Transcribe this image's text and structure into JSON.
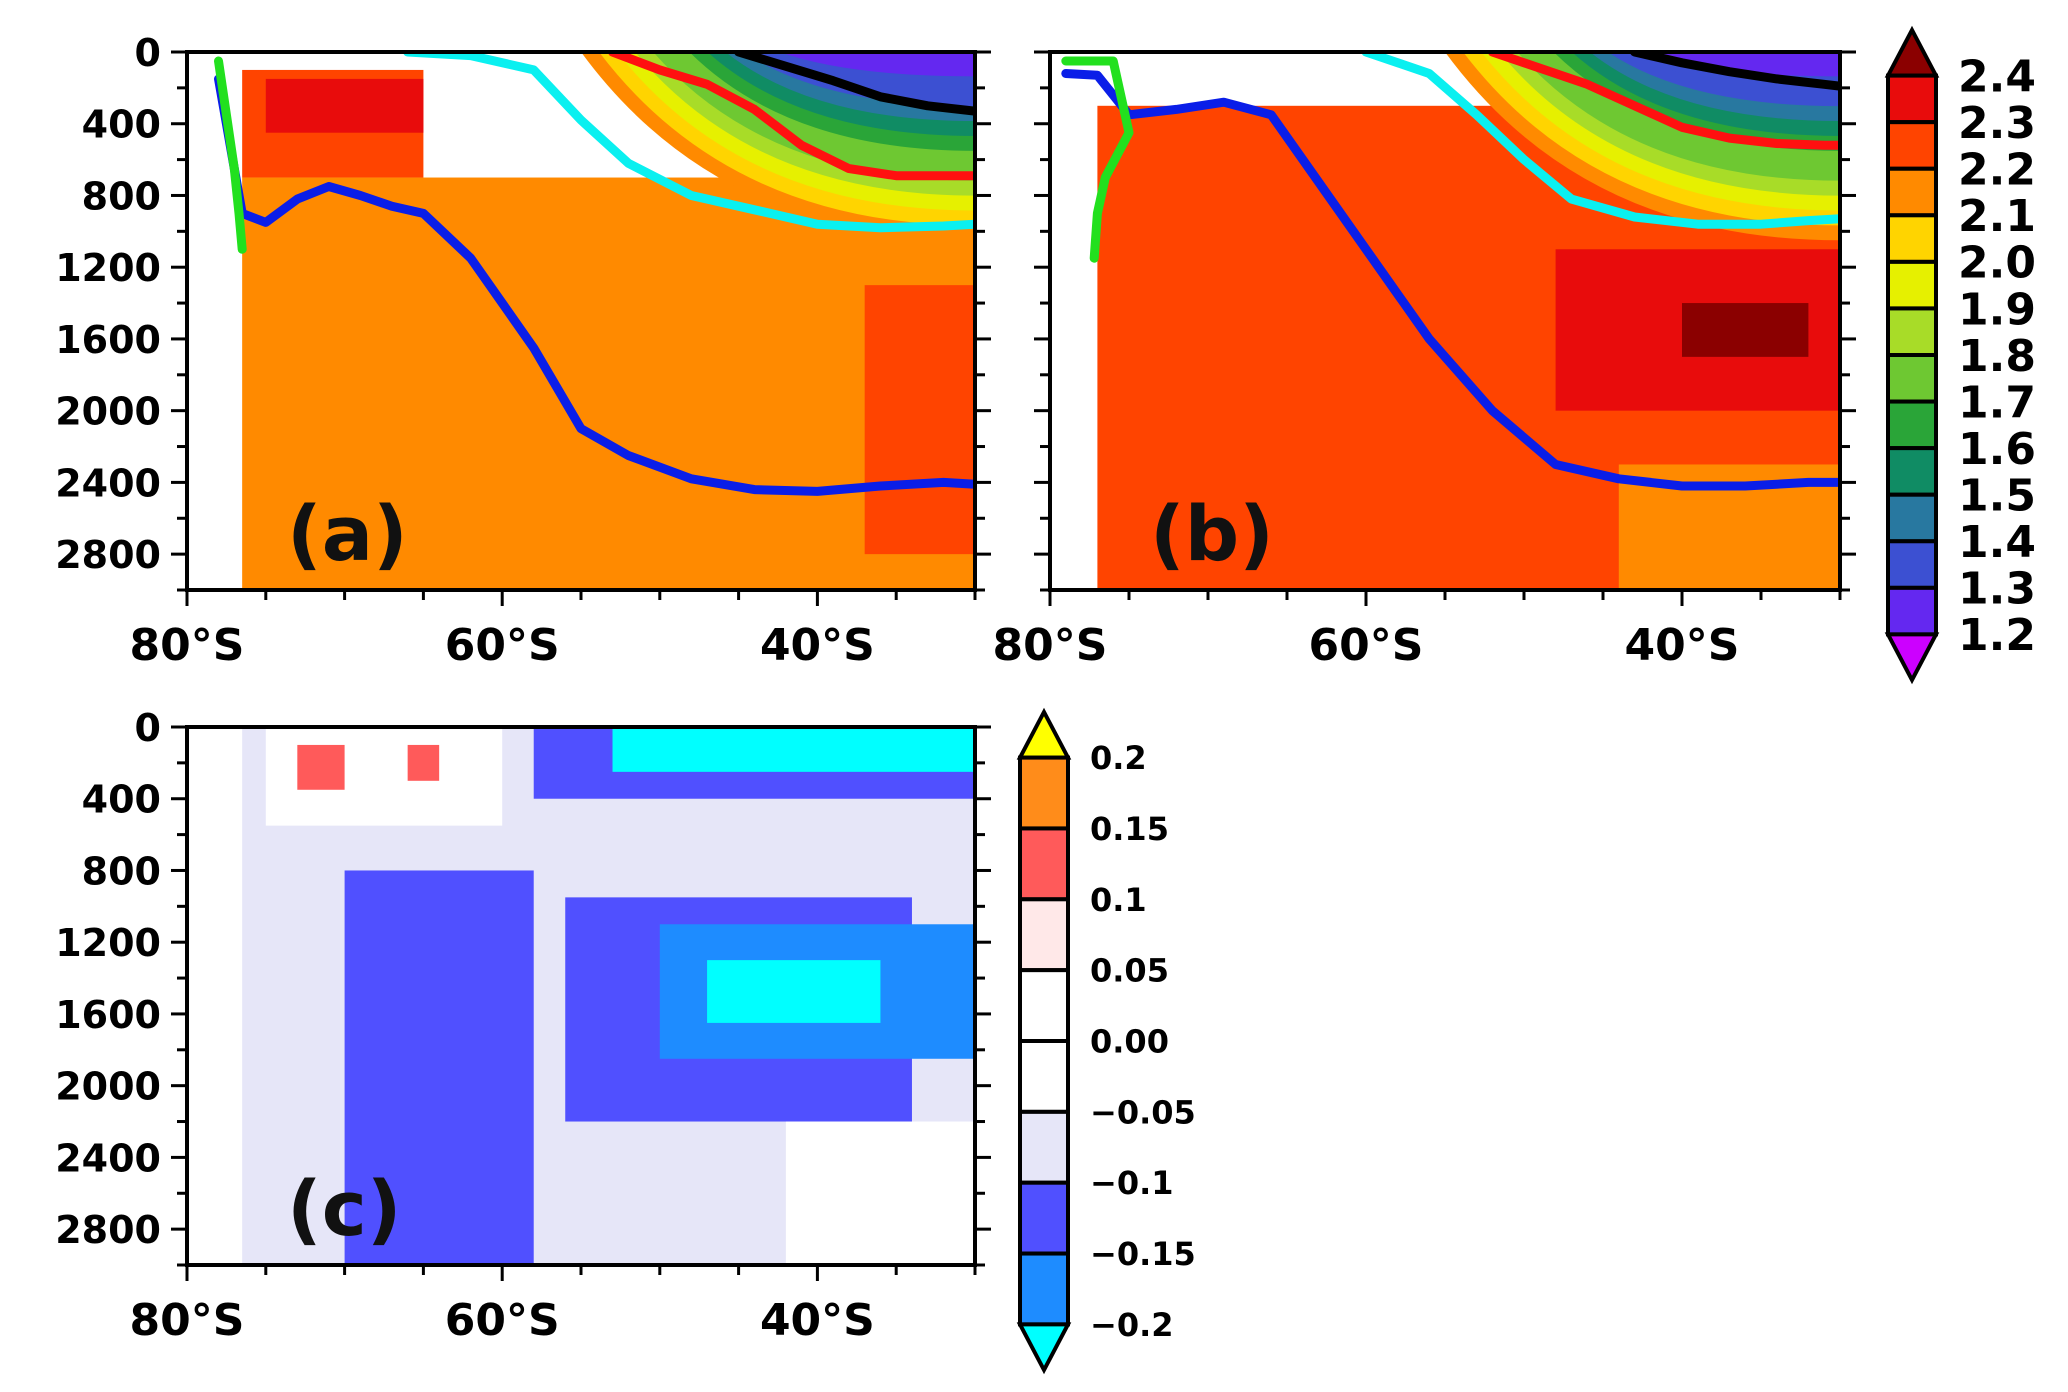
{
  "chart_data": [
    {
      "type": "heatmap",
      "panel_label": "(a)",
      "x_ticks": [
        "80°S",
        "60°S",
        "40°S"
      ],
      "y_ticks": [
        "0",
        "400",
        "800",
        "1200",
        "1600",
        "2000",
        "2400",
        "2800"
      ],
      "xlim": [
        80,
        30
      ],
      "ylim": [
        3000,
        0
      ],
      "grid": false,
      "field": [
        {
          "x0": 80,
          "x1": 76.5,
          "value": "no-data"
        },
        {
          "x0": 76.5,
          "x1": 65,
          "y0": 100,
          "y1": 700,
          "value": 2.25
        },
        {
          "x0": 75,
          "x1": 65,
          "y0": 150,
          "y1": 450,
          "value": 2.35
        },
        {
          "x0": 76.5,
          "x1": 30,
          "y0": 700,
          "y1": 3000,
          "value": 2.15
        },
        {
          "x0": 37,
          "x1": 30,
          "y0": 1300,
          "y1": 2800,
          "value": 2.25
        },
        {
          "x0": 55,
          "x1": 30,
          "y0": 0,
          "y1": 1050,
          "value": "decreasing with depth, 1.2 at surface"
        }
      ],
      "series": [
        {
          "color": "#0a1ee8",
          "x": [
            78,
            76.5,
            75,
            73,
            71,
            69,
            67,
            65,
            62,
            58,
            55,
            52,
            48,
            44,
            40,
            36,
            32,
            30
          ],
          "y": [
            150,
            900,
            950,
            820,
            750,
            800,
            860,
            900,
            1150,
            1650,
            2100,
            2250,
            2380,
            2440,
            2450,
            2420,
            2400,
            2410
          ]
        },
        {
          "color": "#22e01e",
          "x": [
            78,
            77.5,
            77,
            76.7,
            76.5
          ],
          "y": [
            50,
            350,
            650,
            900,
            1100
          ]
        },
        {
          "color": "#0af0f0",
          "x": [
            66,
            62,
            58,
            55,
            52,
            48,
            44,
            40,
            36,
            32,
            30
          ],
          "y": [
            0,
            20,
            100,
            380,
            620,
            800,
            880,
            960,
            980,
            970,
            960
          ]
        },
        {
          "color": "#ff1010",
          "x": [
            53,
            50,
            47,
            44,
            41,
            38,
            35,
            32,
            30
          ],
          "y": [
            0,
            100,
            180,
            320,
            520,
            650,
            690,
            690,
            690
          ]
        },
        {
          "color": "#000000",
          "x": [
            45,
            42,
            39,
            36,
            33,
            30
          ],
          "y": [
            0,
            80,
            160,
            250,
            300,
            330
          ]
        }
      ]
    },
    {
      "type": "heatmap",
      "panel_label": "(b)",
      "x_ticks": [
        "80°S",
        "60°S",
        "40°S"
      ],
      "xlim": [
        80,
        30
      ],
      "ylim": [
        3000,
        0
      ],
      "grid": false,
      "field": [
        {
          "x0": 80,
          "x1": 77,
          "value": "no-data"
        },
        {
          "x0": 77,
          "x1": 30,
          "y0": 300,
          "y1": 3000,
          "value": 2.25
        },
        {
          "x0": 48,
          "x1": 30,
          "y0": 1100,
          "y1": 2000,
          "value": 2.35
        },
        {
          "x0": 40,
          "x1": 32,
          "y0": 1400,
          "y1": 1700,
          "value": 2.45
        },
        {
          "x0": 44,
          "x1": 30,
          "y0": 2300,
          "y1": 3000,
          "value": 2.15
        },
        {
          "x0": 55,
          "x1": 30,
          "y0": 0,
          "y1": 1050,
          "value": "decreasing with depth, 1.2 at surface"
        }
      ],
      "series": [
        {
          "color": "#0a1ee8",
          "x": [
            79,
            77,
            75,
            72,
            69,
            66,
            64,
            60,
            56,
            52,
            48,
            44,
            40,
            36,
            32,
            30
          ],
          "y": [
            120,
            130,
            350,
            320,
            280,
            350,
            600,
            1100,
            1600,
            2000,
            2300,
            2380,
            2420,
            2420,
            2400,
            2400
          ]
        },
        {
          "color": "#22e01e",
          "x": [
            79,
            76,
            75,
            76.5,
            77,
            77.2
          ],
          "y": [
            50,
            50,
            450,
            700,
            900,
            1150
          ]
        },
        {
          "color": "#0af0f0",
          "x": [
            60,
            56,
            53,
            50,
            47,
            43,
            39,
            35,
            32,
            30
          ],
          "y": [
            0,
            120,
            350,
            600,
            820,
            920,
            960,
            960,
            940,
            930
          ]
        },
        {
          "color": "#ff1010",
          "x": [
            52,
            49,
            46,
            43,
            40,
            37,
            34,
            31,
            30
          ],
          "y": [
            0,
            90,
            180,
            300,
            420,
            480,
            510,
            520,
            520
          ]
        },
        {
          "color": "#000000",
          "x": [
            43,
            40,
            37,
            34,
            31,
            30
          ],
          "y": [
            0,
            60,
            110,
            150,
            180,
            190
          ]
        }
      ]
    },
    {
      "type": "heatmap",
      "panel_label": "(c)",
      "x_ticks": [
        "80°S",
        "60°S",
        "40°S"
      ],
      "y_ticks": [
        "0",
        "400",
        "800",
        "1200",
        "1600",
        "2000",
        "2400",
        "2800"
      ],
      "xlim": [
        80,
        30
      ],
      "ylim": [
        3000,
        0
      ],
      "grid": false,
      "field": [
        {
          "x0": 80,
          "x1": 30,
          "y0": 0,
          "y1": 3000,
          "value": -0.075
        },
        {
          "x0": 80,
          "x1": 76.5,
          "y0": 0,
          "y1": 3000,
          "value": 0.0
        },
        {
          "x0": 75,
          "x1": 60,
          "y0": 0,
          "y1": 550,
          "value": 0.0
        },
        {
          "x0": 73,
          "x1": 70,
          "y0": 100,
          "y1": 350,
          "value": 0.125
        },
        {
          "x0": 66,
          "x1": 64,
          "y0": 100,
          "y1": 300,
          "value": 0.125
        },
        {
          "x0": 70,
          "x1": 58,
          "y0": 800,
          "y1": 3000,
          "value": -0.125
        },
        {
          "x0": 56,
          "x1": 34,
          "y0": 950,
          "y1": 2200,
          "value": -0.125
        },
        {
          "x0": 50,
          "x1": 30,
          "y0": 1100,
          "y1": 1850,
          "value": -0.175
        },
        {
          "x0": 47,
          "x1": 36,
          "y0": 1300,
          "y1": 1650,
          "value": -0.25
        },
        {
          "x0": 58,
          "x1": 30,
          "y0": 0,
          "y1": 400,
          "value": -0.125
        },
        {
          "x0": 53,
          "x1": 30,
          "y0": 0,
          "y1": 250,
          "value": -0.25
        },
        {
          "x0": 42,
          "x1": 30,
          "y0": 2200,
          "y1": 3000,
          "value": 0.0
        }
      ]
    }
  ],
  "colorbar_top": {
    "labels": [
      "2.4",
      "2.3",
      "2.2",
      "2.1",
      "2.0",
      "1.9",
      "1.8",
      "1.7",
      "1.6",
      "1.5",
      "1.4",
      "1.3",
      "1.2"
    ],
    "colors": [
      "#8b0000",
      "#e80c0c",
      "#ff4400",
      "#ff8a00",
      "#ffd400",
      "#e6f000",
      "#a8dc28",
      "#6ec832",
      "#2aa538",
      "#108c64",
      "#2878a0",
      "#3c50d2",
      "#6428f0",
      "#cc00ff"
    ]
  },
  "colorbar_bottom": {
    "labels": [
      "0.2",
      "0.15",
      "0.1",
      "0.05",
      "0.00",
      "−0.05",
      "−0.1",
      "−0.15",
      "−0.2"
    ],
    "colors": [
      "#ffff00",
      "#ff8c1a",
      "#ff5a5a",
      "#ffe8e8",
      "#ffffff",
      "#ffffff",
      "#e6e6f8",
      "#5050ff",
      "#1e8cff",
      "#00ffff"
    ]
  }
}
